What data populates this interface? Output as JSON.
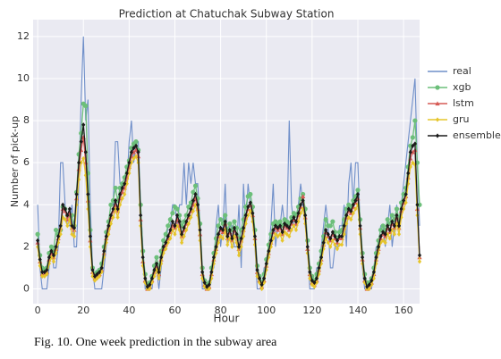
{
  "chart_data": {
    "type": "line",
    "title": "Prediction at Chatuchak Subway Station",
    "x_label": "Hour",
    "y_label": "Number of pick-up",
    "caption": "Fig. 10.   One week prediction in the subway area",
    "x": [
      0,
      1,
      2,
      3,
      4,
      5,
      6,
      7,
      8,
      9,
      10,
      11,
      12,
      13,
      14,
      15,
      16,
      17,
      18,
      19,
      20,
      21,
      22,
      23,
      24,
      25,
      26,
      27,
      28,
      29,
      30,
      31,
      32,
      33,
      34,
      35,
      36,
      37,
      38,
      39,
      40,
      41,
      42,
      43,
      44,
      45,
      46,
      47,
      48,
      49,
      50,
      51,
      52,
      53,
      54,
      55,
      56,
      57,
      58,
      59,
      60,
      61,
      62,
      63,
      64,
      65,
      66,
      67,
      68,
      69,
      70,
      71,
      72,
      73,
      74,
      75,
      76,
      77,
      78,
      79,
      80,
      81,
      82,
      83,
      84,
      85,
      86,
      87,
      88,
      89,
      90,
      91,
      92,
      93,
      94,
      95,
      96,
      97,
      98,
      99,
      100,
      101,
      102,
      103,
      104,
      105,
      106,
      107,
      108,
      109,
      110,
      111,
      112,
      113,
      114,
      115,
      116,
      117,
      118,
      119,
      120,
      121,
      122,
      123,
      124,
      125,
      126,
      127,
      128,
      129,
      130,
      131,
      132,
      133,
      134,
      135,
      136,
      137,
      138,
      139,
      140,
      141,
      142,
      143,
      144,
      145,
      146,
      147,
      148,
      149,
      150,
      151,
      152,
      153,
      154,
      155,
      156,
      157,
      158,
      159,
      160,
      161,
      162,
      163,
      164,
      165,
      166,
      167
    ],
    "xlim": [
      -2,
      167
    ],
    "ylim": [
      -0.7,
      12.8
    ],
    "xticks": [
      0,
      20,
      40,
      60,
      80,
      100,
      120,
      140,
      160
    ],
    "yticks": [
      0,
      2,
      4,
      6,
      8,
      10,
      12
    ],
    "grid": true,
    "legend": "right",
    "series": [
      {
        "name": "real",
        "color": "#6f8fc9",
        "marker": "none",
        "values": [
          4,
          1,
          0,
          0,
          0,
          1,
          2,
          1,
          1,
          2,
          6,
          6,
          4,
          3,
          3,
          4,
          2,
          2,
          5,
          9,
          12,
          8,
          9,
          4,
          1,
          0,
          0,
          0,
          0,
          1,
          2,
          3,
          4,
          4,
          7,
          7,
          5,
          5,
          5,
          5,
          7,
          8,
          6,
          7,
          7,
          4,
          2,
          0,
          0,
          0,
          0,
          1,
          1,
          0,
          1,
          2,
          2,
          3,
          3,
          4,
          4,
          3,
          4,
          4,
          6,
          4,
          6,
          5,
          6,
          5,
          5,
          3,
          0,
          0,
          0,
          0,
          1,
          1,
          3,
          4,
          2,
          3,
          5,
          2,
          3,
          3,
          2,
          2,
          4,
          1,
          5,
          3,
          5,
          4,
          4,
          2,
          0,
          0,
          0,
          1,
          1,
          2,
          3,
          5,
          2,
          3,
          3,
          4,
          3,
          3,
          8,
          4,
          3,
          3,
          4,
          5,
          4,
          3,
          2,
          0,
          0,
          0,
          1,
          1,
          2,
          3,
          4,
          3,
          1,
          1,
          2,
          2,
          3,
          3,
          4,
          2,
          5,
          6,
          4,
          6,
          6,
          3,
          1,
          0,
          0,
          0,
          0,
          1,
          2,
          2,
          3,
          3,
          2,
          3,
          4,
          2,
          3,
          4,
          3,
          4,
          5,
          6,
          7,
          8,
          9,
          10,
          6,
          3
        ]
      },
      {
        "name": "xgb",
        "color": "#6cbf7a",
        "marker": "circle",
        "values": [
          2.6,
          1.6,
          1.0,
          0.9,
          1.0,
          1.7,
          2.0,
          1.8,
          2.8,
          2.6,
          2.8,
          3.9,
          3.8,
          3.5,
          3.5,
          3.5,
          3.0,
          4.6,
          6.4,
          7.4,
          8.8,
          8.7,
          5.5,
          2.8,
          1.0,
          0.7,
          0.8,
          0.9,
          1.2,
          2.0,
          2.7,
          3.2,
          4.0,
          4.2,
          4.8,
          4.2,
          4.8,
          5.0,
          5.3,
          5.8,
          6.1,
          6.7,
          6.9,
          7.0,
          6.6,
          4.0,
          1.8,
          0.7,
          0.2,
          0.3,
          0.6,
          1.1,
          1.5,
          1.0,
          1.8,
          2.3,
          2.6,
          3.0,
          3.3,
          3.6,
          3.9,
          3.8,
          3.5,
          3.0,
          3.2,
          3.5,
          3.9,
          4.1,
          4.6,
          4.9,
          4.3,
          3.1,
          1.0,
          0.4,
          0.2,
          0.3,
          1.0,
          1.7,
          2.4,
          3.0,
          3.3,
          3.1,
          3.5,
          2.8,
          3.1,
          2.8,
          3.2,
          2.9,
          2.4,
          2.8,
          3.3,
          3.9,
          4.4,
          4.5,
          3.9,
          2.8,
          1.1,
          0.6,
          0.3,
          0.7,
          1.4,
          2.1,
          2.6,
          3.1,
          3.2,
          3.1,
          3.2,
          3.0,
          3.3,
          3.2,
          3.1,
          3.4,
          3.6,
          3.5,
          3.9,
          4.3,
          4.5,
          3.8,
          2.3,
          1.0,
          0.6,
          0.4,
          0.7,
          1.2,
          1.8,
          2.5,
          3.3,
          3.0,
          3.0,
          3.2,
          2.7,
          2.4,
          2.7,
          2.8,
          3.3,
          3.8,
          4.0,
          3.9,
          4.2,
          4.4,
          4.7,
          3.3,
          1.7,
          0.7,
          0.3,
          0.3,
          0.5,
          1.0,
          1.7,
          2.3,
          2.8,
          3.0,
          2.8,
          3.3,
          3.1,
          3.5,
          3.3,
          3.8,
          3.3,
          4.1,
          4.5,
          4.8,
          5.8,
          6.8,
          7.2,
          8.0,
          6.0,
          4.0
        ]
      },
      {
        "name": "lstm",
        "color": "#d65a55",
        "marker": "triangle",
        "values": [
          2.2,
          1.3,
          0.7,
          0.7,
          0.8,
          1.4,
          1.7,
          1.5,
          1.9,
          2.4,
          2.9,
          3.8,
          3.7,
          3.3,
          3.6,
          2.9,
          2.8,
          4.3,
          5.7,
          6.6,
          7.2,
          6.0,
          4.2,
          2.3,
          0.8,
          0.5,
          0.6,
          0.7,
          0.9,
          1.7,
          2.4,
          2.9,
          3.4,
          3.7,
          4.0,
          3.7,
          4.3,
          4.6,
          4.8,
          5.3,
          5.8,
          6.3,
          6.5,
          6.6,
          6.3,
          3.3,
          1.3,
          0.4,
          0.0,
          0.1,
          0.4,
          0.8,
          1.1,
          0.7,
          1.4,
          1.9,
          2.1,
          2.4,
          2.7,
          3.0,
          2.9,
          3.3,
          3.0,
          2.5,
          2.8,
          3.1,
          3.4,
          3.7,
          4.0,
          4.3,
          3.8,
          2.6,
          0.7,
          0.2,
          0.0,
          0.1,
          0.7,
          1.4,
          1.9,
          2.5,
          2.8,
          2.7,
          3.1,
          2.4,
          2.7,
          2.3,
          2.8,
          2.5,
          1.9,
          2.3,
          2.8,
          3.4,
          3.8,
          4.0,
          3.5,
          2.4,
          0.8,
          0.4,
          0.1,
          0.4,
          1.1,
          1.7,
          2.2,
          2.7,
          2.9,
          2.8,
          2.9,
          2.6,
          3.0,
          2.9,
          2.8,
          3.1,
          3.3,
          3.1,
          3.5,
          3.9,
          4.4,
          3.4,
          1.9,
          0.7,
          0.3,
          0.2,
          0.4,
          0.9,
          1.4,
          2.1,
          2.7,
          2.5,
          2.3,
          2.6,
          2.4,
          2.2,
          2.4,
          2.4,
          2.9,
          3.4,
          3.7,
          3.6,
          3.9,
          4.1,
          4.3,
          2.9,
          1.4,
          0.4,
          0.0,
          0.1,
          0.3,
          0.7,
          1.4,
          1.9,
          2.4,
          2.6,
          2.5,
          2.9,
          2.7,
          3.1,
          2.9,
          3.4,
          2.9,
          3.7,
          4.1,
          4.4,
          5.3,
          6.2,
          6.5,
          6.6,
          3.8,
          1.5
        ]
      },
      {
        "name": "gru",
        "color": "#e6c52a",
        "marker": "diamond",
        "values": [
          2.0,
          1.1,
          0.6,
          0.6,
          0.7,
          1.2,
          1.5,
          1.3,
          1.7,
          2.2,
          2.6,
          3.4,
          3.3,
          3.0,
          3.3,
          2.6,
          2.5,
          4.0,
          5.2,
          6.0,
          6.2,
          5.4,
          3.8,
          2.0,
          0.6,
          0.4,
          0.5,
          0.6,
          0.8,
          1.5,
          2.2,
          2.6,
          3.1,
          3.4,
          3.8,
          3.4,
          4.0,
          4.3,
          4.5,
          5.0,
          5.5,
          6.0,
          6.2,
          6.3,
          6.0,
          3.0,
          1.1,
          0.3,
          0.0,
          0.0,
          0.3,
          0.6,
          0.9,
          0.5,
          1.2,
          1.7,
          1.9,
          2.2,
          2.4,
          2.8,
          2.6,
          3.0,
          2.8,
          2.2,
          2.5,
          2.8,
          3.1,
          3.4,
          3.7,
          4.0,
          3.5,
          2.3,
          0.5,
          0.1,
          0.0,
          0.0,
          0.5,
          1.2,
          1.7,
          2.2,
          2.5,
          2.4,
          2.8,
          2.1,
          2.4,
          2.0,
          2.5,
          2.2,
          1.6,
          2.0,
          2.5,
          3.1,
          3.5,
          3.7,
          3.2,
          2.1,
          0.6,
          0.3,
          0.0,
          0.3,
          0.9,
          1.5,
          2.0,
          2.4,
          2.6,
          2.5,
          2.6,
          2.3,
          2.7,
          2.6,
          2.5,
          2.8,
          3.0,
          2.8,
          3.2,
          3.6,
          3.8,
          3.1,
          1.7,
          0.5,
          0.2,
          0.1,
          0.3,
          0.7,
          1.2,
          1.9,
          2.4,
          2.2,
          2.0,
          2.3,
          2.1,
          1.9,
          2.1,
          2.1,
          2.6,
          3.1,
          3.4,
          3.3,
          3.6,
          3.8,
          4.0,
          2.6,
          1.2,
          0.3,
          0.0,
          0.0,
          0.2,
          0.5,
          1.2,
          1.7,
          2.2,
          2.3,
          2.2,
          2.6,
          2.4,
          2.8,
          2.6,
          3.1,
          2.6,
          3.4,
          3.8,
          4.1,
          5.0,
          5.8,
          6.0,
          5.9,
          3.5,
          1.3
        ]
      },
      {
        "name": "ensemble",
        "color": "#1a1a1a",
        "marker": "diamond",
        "values": [
          2.3,
          1.4,
          0.8,
          0.8,
          0.9,
          1.5,
          1.8,
          1.6,
          2.0,
          2.5,
          3.0,
          4.0,
          3.8,
          3.5,
          3.8,
          3.0,
          2.9,
          4.5,
          6.0,
          7.0,
          7.8,
          6.5,
          4.5,
          2.5,
          0.9,
          0.6,
          0.7,
          0.8,
          1.0,
          1.8,
          2.5,
          3.0,
          3.5,
          3.8,
          4.2,
          3.8,
          4.5,
          4.8,
          5.0,
          5.5,
          6.0,
          6.5,
          6.7,
          6.8,
          6.5,
          3.5,
          1.5,
          0.5,
          0.1,
          0.2,
          0.5,
          0.9,
          1.2,
          0.8,
          1.5,
          2.0,
          2.2,
          2.5,
          2.8,
          3.2,
          3.0,
          3.5,
          3.2,
          2.6,
          2.9,
          3.2,
          3.5,
          3.8,
          4.2,
          4.5,
          4.0,
          2.8,
          0.8,
          0.3,
          0.1,
          0.2,
          0.8,
          1.5,
          2.0,
          2.6,
          2.9,
          2.8,
          3.2,
          2.5,
          2.8,
          2.4,
          2.9,
          2.6,
          2.0,
          2.4,
          2.9,
          3.5,
          3.9,
          4.1,
          3.6,
          2.5,
          0.9,
          0.5,
          0.2,
          0.5,
          1.2,
          1.8,
          2.3,
          2.8,
          3.0,
          2.9,
          3.0,
          2.7,
          3.1,
          3.0,
          2.9,
          3.2,
          3.4,
          3.2,
          3.6,
          4.0,
          4.2,
          3.5,
          2.0,
          0.8,
          0.4,
          0.3,
          0.5,
          1.0,
          1.5,
          2.2,
          2.8,
          2.6,
          2.4,
          2.7,
          2.5,
          2.3,
          2.5,
          2.5,
          3.0,
          3.5,
          3.8,
          3.7,
          4.0,
          4.2,
          4.5,
          3.0,
          1.5,
          0.5,
          0.1,
          0.2,
          0.4,
          0.8,
          1.5,
          2.0,
          2.5,
          2.7,
          2.6,
          3.0,
          2.8,
          3.2,
          3.0,
          3.5,
          3.0,
          3.8,
          4.2,
          4.5,
          5.5,
          6.5,
          6.8,
          6.9,
          4.0,
          1.6
        ]
      }
    ]
  }
}
